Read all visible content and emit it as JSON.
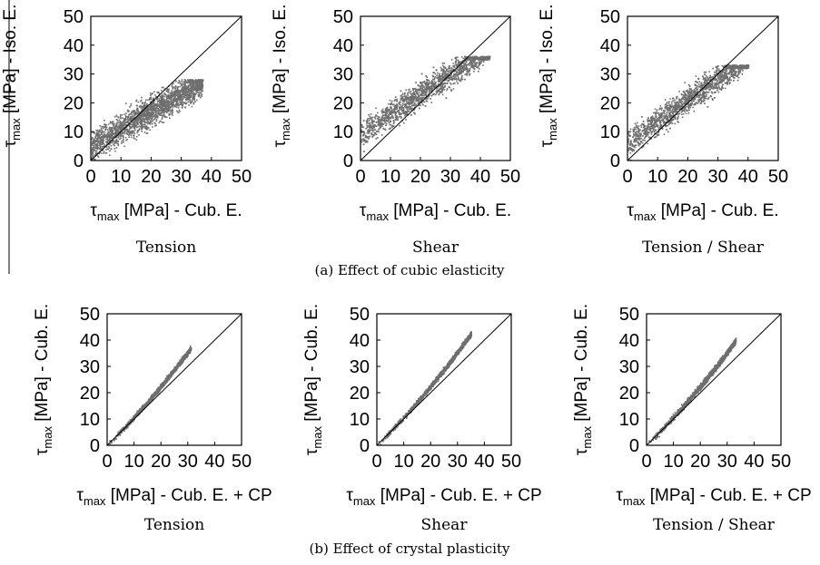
{
  "figure": {
    "caption_a": "(a) Effect of cubic elasticity",
    "caption_b": "(b) Effect of crystal plasticity"
  },
  "chart_data": [
    {
      "type": "scatter",
      "row": "a",
      "title": "Tension",
      "xlabel": "τmax [MPa] - Cub. E.",
      "ylabel": "τmax [MPa] - Iso. E.",
      "xlim": [
        0,
        50
      ],
      "ylim": [
        0,
        50
      ],
      "xticks": [
        0,
        10,
        20,
        30,
        40,
        50
      ],
      "yticks": [
        0,
        10,
        20,
        30,
        40,
        50
      ],
      "reference_line": "y = x",
      "point_color": "#6e6e6e",
      "cloud": {
        "x_range": [
          0,
          37
        ],
        "y_range": [
          0,
          28
        ],
        "y_cap": 28,
        "trend_slope": 0.6,
        "trend_intercept": 5,
        "scatter_sd": 5
      }
    },
    {
      "type": "scatter",
      "row": "a",
      "title": "Shear",
      "xlabel": "τmax [MPa] - Cub. E.",
      "ylabel": "τmax [MPa] - Iso. E.",
      "xlim": [
        0,
        50
      ],
      "ylim": [
        0,
        50
      ],
      "xticks": [
        0,
        10,
        20,
        30,
        40,
        50
      ],
      "yticks": [
        0,
        10,
        20,
        30,
        40,
        50
      ],
      "reference_line": "y = x",
      "point_color": "#6e6e6e",
      "cloud": {
        "x_range": [
          0,
          43
        ],
        "y_range": [
          0,
          36
        ],
        "y_cap": 36,
        "trend_slope": 0.7,
        "trend_intercept": 9,
        "scatter_sd": 4.5
      }
    },
    {
      "type": "scatter",
      "row": "a",
      "title": "Tension / Shear",
      "xlabel": "τmax [MPa] - Cub. E.",
      "ylabel": "τmax [MPa] - Iso. E.",
      "xlim": [
        0,
        50
      ],
      "ylim": [
        0,
        50
      ],
      "xticks": [
        0,
        10,
        20,
        30,
        40,
        50
      ],
      "yticks": [
        0,
        10,
        20,
        30,
        40,
        50
      ],
      "reference_line": "y = x",
      "point_color": "#6e6e6e",
      "cloud": {
        "x_range": [
          0,
          40
        ],
        "y_range": [
          0,
          33
        ],
        "y_cap": 33,
        "trend_slope": 0.75,
        "trend_intercept": 6,
        "scatter_sd": 4.5
      }
    },
    {
      "type": "scatter",
      "row": "b",
      "title": "Tension",
      "xlabel": "τmax [MPa] - Cub. E. + CP",
      "ylabel": "τmax [MPa] - Cub. E.",
      "xlim": [
        0,
        50
      ],
      "ylim": [
        0,
        50
      ],
      "xticks": [
        0,
        10,
        20,
        30,
        40,
        50
      ],
      "yticks": [
        0,
        10,
        20,
        30,
        40,
        50
      ],
      "reference_line": "y = x",
      "point_color": "#6e6e6e",
      "cloud": {
        "x_range": [
          0,
          31
        ],
        "y_range": [
          0,
          38
        ],
        "trend": "slightly convex about y = x",
        "scatter_sd": 0.9
      }
    },
    {
      "type": "scatter",
      "row": "b",
      "title": "Shear",
      "xlabel": "τmax [MPa] - Cub. E. + CP",
      "ylabel": "τmax [MPa] - Cub. E.",
      "xlim": [
        0,
        50
      ],
      "ylim": [
        0,
        50
      ],
      "xticks": [
        0,
        10,
        20,
        30,
        40,
        50
      ],
      "yticks": [
        0,
        10,
        20,
        30,
        40,
        50
      ],
      "reference_line": "y = x",
      "point_color": "#6e6e6e",
      "cloud": {
        "x_range": [
          0,
          35
        ],
        "y_range": [
          0,
          40
        ],
        "trend": "slightly convex about y = x",
        "scatter_sd": 0.9
      }
    },
    {
      "type": "scatter",
      "row": "b",
      "title": "Tension / Shear",
      "xlabel": "τmax [MPa] - Cub. E. + CP",
      "ylabel": "τmax [MPa] - Cub. E.",
      "xlim": [
        0,
        50
      ],
      "ylim": [
        0,
        50
      ],
      "xticks": [
        0,
        10,
        20,
        30,
        40,
        50
      ],
      "yticks": [
        0,
        10,
        20,
        30,
        40,
        50
      ],
      "reference_line": "y = x",
      "point_color": "#6e6e6e",
      "cloud": {
        "x_range": [
          0,
          33
        ],
        "y_range": [
          0,
          38
        ],
        "trend": "slightly convex about y = x",
        "scatter_sd": 1.1
      }
    }
  ]
}
